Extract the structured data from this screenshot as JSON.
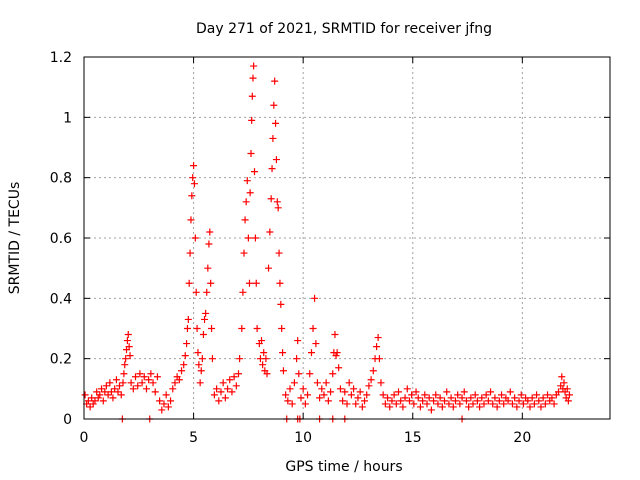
{
  "chart_data": {
    "type": "scatter",
    "title": "Day 271 of 2021, SRMTID for receiver jfng",
    "xlabel": "GPS time / hours",
    "ylabel": "SRMTID / TECUs",
    "xlim": [
      0,
      24
    ],
    "ylim": [
      0,
      1.2
    ],
    "x_ticks": [
      0,
      5,
      10,
      15,
      20
    ],
    "x_tick_labels": [
      "0",
      "5",
      "10",
      "15",
      "20"
    ],
    "y_ticks": [
      0,
      0.2,
      0.4,
      0.6,
      0.8,
      1,
      1.2
    ],
    "y_tick_labels": [
      "0",
      "0.2",
      "0.4",
      "0.6",
      "0.8",
      "1",
      "1.2"
    ],
    "grid": true,
    "marker": "plus",
    "color": "#ff0000",
    "series": [
      {
        "name": "SRMTID",
        "points": [
          [
            0.05,
            0.08
          ],
          [
            0.12,
            0.05
          ],
          [
            0.2,
            0.06
          ],
          [
            0.28,
            0.04
          ],
          [
            0.35,
            0.07
          ],
          [
            0.42,
            0.05
          ],
          [
            0.5,
            0.06
          ],
          [
            0.58,
            0.09
          ],
          [
            0.65,
            0.07
          ],
          [
            0.72,
            0.08
          ],
          [
            0.8,
            0.1
          ],
          [
            0.88,
            0.06
          ],
          [
            0.95,
            0.09
          ],
          [
            1.02,
            0.11
          ],
          [
            1.1,
            0.08
          ],
          [
            1.18,
            0.12
          ],
          [
            1.25,
            0.09
          ],
          [
            1.32,
            0.07
          ],
          [
            1.4,
            0.1
          ],
          [
            1.48,
            0.13
          ],
          [
            1.55,
            0.09
          ],
          [
            1.62,
            0.11
          ],
          [
            1.7,
            0.08
          ],
          [
            1.78,
            0.12
          ],
          [
            1.82,
            0.15
          ],
          [
            1.86,
            0.18
          ],
          [
            1.9,
            0.2
          ],
          [
            1.94,
            0.23
          ],
          [
            1.98,
            0.26
          ],
          [
            2.02,
            0.28
          ],
          [
            2.06,
            0.24
          ],
          [
            2.1,
            0.21
          ],
          [
            2.15,
            0.12
          ],
          [
            2.25,
            0.1
          ],
          [
            2.35,
            0.14
          ],
          [
            2.45,
            0.11
          ],
          [
            2.55,
            0.15
          ],
          [
            2.65,
            0.12
          ],
          [
            2.75,
            0.14
          ],
          [
            2.85,
            0.1
          ],
          [
            2.95,
            0.13
          ],
          [
            3.05,
            0.15
          ],
          [
            3.15,
            0.12
          ],
          [
            3.25,
            0.09
          ],
          [
            3.35,
            0.14
          ],
          [
            3.45,
            0.06
          ],
          [
            3.55,
            0.03
          ],
          [
            3.65,
            0.05
          ],
          [
            3.75,
            0.08
          ],
          [
            3.85,
            0.04
          ],
          [
            3.95,
            0.06
          ],
          [
            4.05,
            0.1
          ],
          [
            4.15,
            0.12
          ],
          [
            4.25,
            0.14
          ],
          [
            4.35,
            0.13
          ],
          [
            4.45,
            0.16
          ],
          [
            4.55,
            0.18
          ],
          [
            4.62,
            0.21
          ],
          [
            4.68,
            0.25
          ],
          [
            4.72,
            0.3
          ],
          [
            4.76,
            0.33
          ],
          [
            4.8,
            0.45
          ],
          [
            4.84,
            0.55
          ],
          [
            4.88,
            0.66
          ],
          [
            4.92,
            0.74
          ],
          [
            4.96,
            0.8
          ],
          [
            5.0,
            0.84
          ],
          [
            5.04,
            0.78
          ],
          [
            5.08,
            0.6
          ],
          [
            5.12,
            0.42
          ],
          [
            5.16,
            0.3
          ],
          [
            5.2,
            0.22
          ],
          [
            5.24,
            0.18
          ],
          [
            5.3,
            0.12
          ],
          [
            5.35,
            0.16
          ],
          [
            5.4,
            0.2
          ],
          [
            5.45,
            0.28
          ],
          [
            5.5,
            0.33
          ],
          [
            5.55,
            0.35
          ],
          [
            5.6,
            0.42
          ],
          [
            5.65,
            0.5
          ],
          [
            5.7,
            0.58
          ],
          [
            5.74,
            0.62
          ],
          [
            5.78,
            0.45
          ],
          [
            5.82,
            0.3
          ],
          [
            5.86,
            0.2
          ],
          [
            5.95,
            0.08
          ],
          [
            6.05,
            0.1
          ],
          [
            6.15,
            0.06
          ],
          [
            6.25,
            0.09
          ],
          [
            6.35,
            0.12
          ],
          [
            6.45,
            0.07
          ],
          [
            6.55,
            0.1
          ],
          [
            6.65,
            0.13
          ],
          [
            6.75,
            0.09
          ],
          [
            6.85,
            0.14
          ],
          [
            6.95,
            0.11
          ],
          [
            7.05,
            0.15
          ],
          [
            7.1,
            0.2
          ],
          [
            7.2,
            0.3
          ],
          [
            7.25,
            0.42
          ],
          [
            7.3,
            0.55
          ],
          [
            7.35,
            0.66
          ],
          [
            7.4,
            0.72
          ],
          [
            7.45,
            0.79
          ],
          [
            7.5,
            0.6
          ],
          [
            7.55,
            0.45
          ],
          [
            7.58,
            0.75
          ],
          [
            7.62,
            0.88
          ],
          [
            7.65,
            0.99
          ],
          [
            7.68,
            1.07
          ],
          [
            7.71,
            1.13
          ],
          [
            7.74,
            1.17
          ],
          [
            7.78,
            0.82
          ],
          [
            7.82,
            0.6
          ],
          [
            7.86,
            0.45
          ],
          [
            7.9,
            0.3
          ],
          [
            8.0,
            0.25
          ],
          [
            8.05,
            0.2
          ],
          [
            8.1,
            0.26
          ],
          [
            8.15,
            0.18
          ],
          [
            8.2,
            0.22
          ],
          [
            8.25,
            0.16
          ],
          [
            8.3,
            0.2
          ],
          [
            8.35,
            0.15
          ],
          [
            8.42,
            0.5
          ],
          [
            8.48,
            0.62
          ],
          [
            8.54,
            0.73
          ],
          [
            8.58,
            0.83
          ],
          [
            8.62,
            0.93
          ],
          [
            8.66,
            1.04
          ],
          [
            8.7,
            1.12
          ],
          [
            8.74,
            0.98
          ],
          [
            8.78,
            0.86
          ],
          [
            8.82,
            0.72
          ],
          [
            8.86,
            0.7
          ],
          [
            8.9,
            0.55
          ],
          [
            8.94,
            0.45
          ],
          [
            8.98,
            0.38
          ],
          [
            9.02,
            0.3
          ],
          [
            9.06,
            0.22
          ],
          [
            9.1,
            0.16
          ],
          [
            9.2,
            0.08
          ],
          [
            9.3,
            0.06
          ],
          [
            9.4,
            0.1
          ],
          [
            9.5,
            0.05
          ],
          [
            9.6,
            0.12
          ],
          [
            9.7,
            0.2
          ],
          [
            9.75,
            0.26
          ],
          [
            9.8,
            0.15
          ],
          [
            9.9,
            0.07
          ],
          [
            10.0,
            0.1
          ],
          [
            10.1,
            0.05
          ],
          [
            10.2,
            0.08
          ],
          [
            10.3,
            0.15
          ],
          [
            10.38,
            0.22
          ],
          [
            10.45,
            0.3
          ],
          [
            10.52,
            0.4
          ],
          [
            10.58,
            0.25
          ],
          [
            10.65,
            0.12
          ],
          [
            10.75,
            0.07
          ],
          [
            10.85,
            0.1
          ],
          [
            10.95,
            0.08
          ],
          [
            11.05,
            0.12
          ],
          [
            11.15,
            0.06
          ],
          [
            11.25,
            0.09
          ],
          [
            11.35,
            0.15
          ],
          [
            11.4,
            0.22
          ],
          [
            11.45,
            0.28
          ],
          [
            11.5,
            0.21
          ],
          [
            11.55,
            0.22
          ],
          [
            11.62,
            0.17
          ],
          [
            11.7,
            0.1
          ],
          [
            11.8,
            0.06
          ],
          [
            11.9,
            0.09
          ],
          [
            12.0,
            0.05
          ],
          [
            12.1,
            0.12
          ],
          [
            12.2,
            0.08
          ],
          [
            12.3,
            0.1
          ],
          [
            12.4,
            0.05
          ],
          [
            12.5,
            0.07
          ],
          [
            12.6,
            0.09
          ],
          [
            12.7,
            0.04
          ],
          [
            12.8,
            0.06
          ],
          [
            12.9,
            0.08
          ],
          [
            13.0,
            0.11
          ],
          [
            13.1,
            0.13
          ],
          [
            13.2,
            0.16
          ],
          [
            13.28,
            0.2
          ],
          [
            13.35,
            0.24
          ],
          [
            13.42,
            0.27
          ],
          [
            13.48,
            0.2
          ],
          [
            13.55,
            0.12
          ],
          [
            13.65,
            0.08
          ],
          [
            13.75,
            0.05
          ],
          [
            13.85,
            0.07
          ],
          [
            13.95,
            0.04
          ],
          [
            14.05,
            0.06
          ],
          [
            14.15,
            0.08
          ],
          [
            14.25,
            0.05
          ],
          [
            14.35,
            0.09
          ],
          [
            14.45,
            0.06
          ],
          [
            14.55,
            0.04
          ],
          [
            14.65,
            0.07
          ],
          [
            14.75,
            0.1
          ],
          [
            14.85,
            0.06
          ],
          [
            14.95,
            0.08
          ],
          [
            15.05,
            0.05
          ],
          [
            15.15,
            0.09
          ],
          [
            15.25,
            0.07
          ],
          [
            15.35,
            0.04
          ],
          [
            15.45,
            0.06
          ],
          [
            15.55,
            0.08
          ],
          [
            15.65,
            0.05
          ],
          [
            15.75,
            0.07
          ],
          [
            15.85,
            0.03
          ],
          [
            15.95,
            0.06
          ],
          [
            16.05,
            0.08
          ],
          [
            16.15,
            0.05
          ],
          [
            16.25,
            0.07
          ],
          [
            16.35,
            0.04
          ],
          [
            16.45,
            0.06
          ],
          [
            16.55,
            0.09
          ],
          [
            16.65,
            0.05
          ],
          [
            16.75,
            0.07
          ],
          [
            16.85,
            0.04
          ],
          [
            16.95,
            0.06
          ],
          [
            17.05,
            0.08
          ],
          [
            17.15,
            0.05
          ],
          [
            17.25,
            0.07
          ],
          [
            17.35,
            0.09
          ],
          [
            17.45,
            0.06
          ],
          [
            17.55,
            0.04
          ],
          [
            17.65,
            0.07
          ],
          [
            17.75,
            0.05
          ],
          [
            17.85,
            0.08
          ],
          [
            17.95,
            0.06
          ],
          [
            18.05,
            0.04
          ],
          [
            18.15,
            0.07
          ],
          [
            18.25,
            0.05
          ],
          [
            18.35,
            0.08
          ],
          [
            18.45,
            0.06
          ],
          [
            18.55,
            0.09
          ],
          [
            18.65,
            0.05
          ],
          [
            18.75,
            0.07
          ],
          [
            18.85,
            0.04
          ],
          [
            18.95,
            0.06
          ],
          [
            19.05,
            0.08
          ],
          [
            19.15,
            0.05
          ],
          [
            19.25,
            0.07
          ],
          [
            19.35,
            0.06
          ],
          [
            19.45,
            0.09
          ],
          [
            19.55,
            0.05
          ],
          [
            19.65,
            0.07
          ],
          [
            19.75,
            0.04
          ],
          [
            19.85,
            0.06
          ],
          [
            19.95,
            0.08
          ],
          [
            20.05,
            0.05
          ],
          [
            20.15,
            0.07
          ],
          [
            20.25,
            0.06
          ],
          [
            20.35,
            0.04
          ],
          [
            20.45,
            0.07
          ],
          [
            20.55,
            0.05
          ],
          [
            20.65,
            0.08
          ],
          [
            20.75,
            0.06
          ],
          [
            20.85,
            0.04
          ],
          [
            20.95,
            0.07
          ],
          [
            21.05,
            0.05
          ],
          [
            21.15,
            0.08
          ],
          [
            21.25,
            0.06
          ],
          [
            21.35,
            0.07
          ],
          [
            21.45,
            0.05
          ],
          [
            21.55,
            0.08
          ],
          [
            21.65,
            0.09
          ],
          [
            21.75,
            0.11
          ],
          [
            21.8,
            0.14
          ],
          [
            21.85,
            0.1
          ],
          [
            21.9,
            0.12
          ],
          [
            21.95,
            0.09
          ],
          [
            22.0,
            0.07
          ],
          [
            22.05,
            0.1
          ],
          [
            22.1,
            0.06
          ],
          [
            22.15,
            0.08
          ],
          [
            1.75,
            0.0
          ],
          [
            3.0,
            0.0
          ],
          [
            9.25,
            0.0
          ],
          [
            9.75,
            0.0
          ],
          [
            9.85,
            0.0
          ],
          [
            10.75,
            0.0
          ],
          [
            11.35,
            0.0
          ],
          [
            11.9,
            0.0
          ],
          [
            17.25,
            0.0
          ]
        ]
      }
    ]
  }
}
